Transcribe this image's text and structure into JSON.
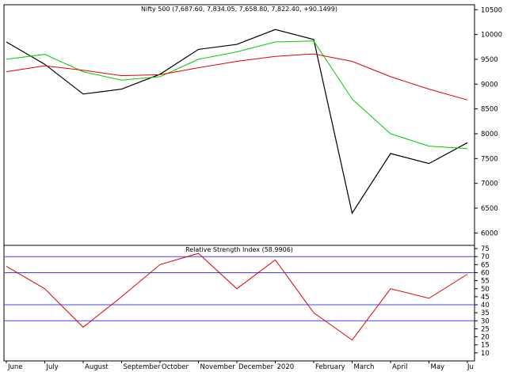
{
  "chart_data": [
    {
      "type": "candlestick",
      "title": "Nifty 500 (7,687.60, 7,834.05, 7,658.80, 7,822.40, +90.1499)",
      "ylim": [
        5750,
        10600
      ],
      "y_ticks": [
        "10500",
        "10000",
        "9500",
        "9000",
        "8500",
        "8000",
        "7500",
        "7000",
        "6500",
        "6000"
      ],
      "x_ticks": [
        "June",
        "July",
        "August",
        "September",
        "October",
        "November",
        "December",
        "2020",
        "February",
        "March",
        "April",
        "May",
        "Ju"
      ],
      "grid": false,
      "series": [
        {
          "kind": "price",
          "color": "#000000",
          "x": [
            "Jun",
            "Jul",
            "Aug",
            "Sep",
            "Oct",
            "Nov",
            "Dec",
            "Jan",
            "Feb",
            "Mar",
            "Apr",
            "May",
            "Jun"
          ],
          "values": [
            9850,
            9400,
            8800,
            8900,
            9200,
            9700,
            9800,
            10100,
            9900,
            6400,
            7600,
            7400,
            7820
          ]
        },
        {
          "kind": "moving-average",
          "color": "#00cc00",
          "x": [
            "Jun",
            "Jul",
            "Aug",
            "Sep",
            "Oct",
            "Nov",
            "Dec",
            "Jan",
            "Feb",
            "Mar",
            "Apr",
            "May",
            "Jun"
          ],
          "values": [
            9500,
            9600,
            9250,
            9080,
            9150,
            9500,
            9650,
            9850,
            9870,
            8700,
            8000,
            7750,
            7700
          ]
        },
        {
          "kind": "moving-average",
          "color": "#e00000",
          "x": [
            "Jun",
            "Jul",
            "Aug",
            "Sep",
            "Oct",
            "Nov",
            "Dec",
            "Jan",
            "Feb",
            "Mar",
            "Apr",
            "May",
            "Jun"
          ],
          "values": [
            9250,
            9370,
            9280,
            9170,
            9190,
            9330,
            9460,
            9560,
            9610,
            9460,
            9150,
            8900,
            8680
          ]
        }
      ]
    },
    {
      "type": "line",
      "title": "Relative Strength Index (58.9906)",
      "ylim": [
        5,
        77
      ],
      "y_ticks": [
        "75",
        "70",
        "65",
        "60",
        "55",
        "50",
        "45",
        "40",
        "35",
        "30",
        "25",
        "20",
        "15",
        "10"
      ],
      "reference_lines": [
        70,
        60,
        40,
        30
      ],
      "reference_color": "#4040ff",
      "series": [
        {
          "color": "#e00000",
          "x": [
            "Jun",
            "Jul",
            "Aug",
            "Sep",
            "Oct",
            "Nov",
            "Dec",
            "Jan",
            "Feb",
            "Mar",
            "Apr",
            "May",
            "Jun"
          ],
          "values": [
            64,
            50,
            26,
            45,
            65,
            72,
            50,
            68,
            35,
            18,
            50,
            44,
            59
          ]
        }
      ]
    }
  ]
}
